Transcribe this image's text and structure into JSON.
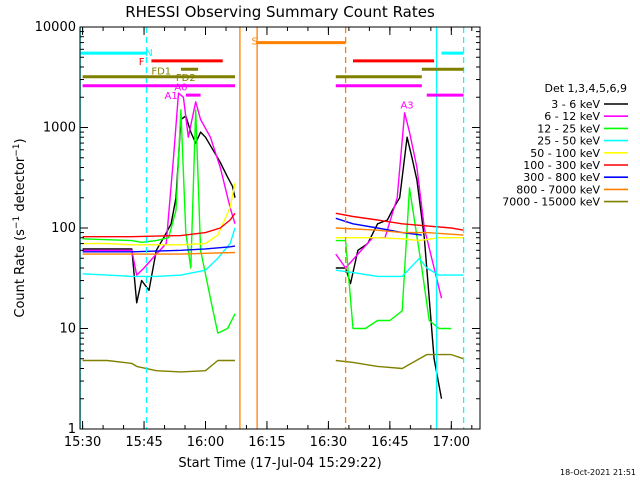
{
  "chart_data": {
    "type": "line",
    "title": "RHESSI Observing Summary Count Rates",
    "xlabel": "Start Time (17-Jul-04 15:29:22)",
    "ylabel": "Count Rate (s⁻¹ detector⁻¹)",
    "ylabel_main": "Count Rate (s",
    "ylabel_sup1": "−1",
    "ylabel_mid": " detector",
    "ylabel_sup2": "−1",
    "ylabel_end": ")",
    "yscale": "log",
    "ylim": [
      1,
      10000
    ],
    "xlim": [
      "15:29:22",
      "17:07"
    ],
    "x_ticks": [
      "15:30",
      "15:45",
      "16:00",
      "16:15",
      "16:30",
      "16:45",
      "17:00"
    ],
    "y_ticks": [
      "1",
      "10",
      "100",
      "1000",
      "10000"
    ],
    "legend_title": "Det 1,3,4,5,6,9",
    "legend_position": "right",
    "timestamp": "18-Oct-2021 21:51",
    "series": [
      {
        "name": "3 - 6 keV",
        "color": "#000000",
        "segments": [
          [
            [
              15.5,
              62
            ],
            [
              15.7,
              62
            ],
            [
              15.72,
              18
            ],
            [
              15.74,
              30
            ],
            [
              15.77,
              24
            ],
            [
              15.8,
              60
            ],
            [
              15.83,
              80
            ],
            [
              15.86,
              110
            ],
            [
              15.88,
              200
            ],
            [
              15.9,
              1200
            ],
            [
              15.92,
              1300
            ],
            [
              15.94,
              900
            ],
            [
              15.96,
              700
            ],
            [
              15.98,
              900
            ],
            [
              16.0,
              800
            ],
            [
              16.03,
              600
            ],
            [
              16.06,
              450
            ],
            [
              16.09,
              320
            ],
            [
              16.11,
              260
            ],
            [
              16.12,
              200
            ]
          ],
          [
            [
              16.53,
              40
            ],
            [
              16.57,
              40
            ],
            [
              16.59,
              28
            ],
            [
              16.62,
              60
            ],
            [
              16.66,
              70
            ],
            [
              16.7,
              110
            ],
            [
              16.74,
              120
            ],
            [
              16.76,
              150
            ],
            [
              16.79,
              200
            ],
            [
              16.82,
              800
            ],
            [
              16.84,
              500
            ],
            [
              16.86,
              300
            ],
            [
              16.89,
              80
            ],
            [
              16.91,
              20
            ],
            [
              16.93,
              5
            ],
            [
              16.96,
              2
            ]
          ]
        ]
      },
      {
        "name": "6 - 12 keV",
        "color": "#ff00ff",
        "segments": [
          [
            [
              15.5,
              60
            ],
            [
              15.7,
              60
            ],
            [
              15.72,
              34
            ],
            [
              15.75,
              40
            ],
            [
              15.8,
              55
            ],
            [
              15.84,
              70
            ],
            [
              15.87,
              500
            ],
            [
              15.89,
              2200
            ],
            [
              15.91,
              2000
            ],
            [
              15.93,
              800
            ],
            [
              15.96,
              1800
            ],
            [
              15.98,
              1200
            ],
            [
              16.02,
              800
            ],
            [
              16.06,
              400
            ],
            [
              16.1,
              160
            ],
            [
              16.12,
              110
            ]
          ],
          [
            [
              16.53,
              55
            ],
            [
              16.57,
              40
            ],
            [
              16.62,
              55
            ],
            [
              16.68,
              80
            ],
            [
              16.73,
              80
            ],
            [
              16.78,
              200
            ],
            [
              16.81,
              1400
            ],
            [
              16.83,
              900
            ],
            [
              16.86,
              400
            ],
            [
              16.89,
              100
            ],
            [
              16.93,
              40
            ],
            [
              16.96,
              20
            ]
          ]
        ]
      },
      {
        "name": "12 - 25 keV",
        "color": "#00ff00",
        "segments": [
          [
            [
              15.5,
              78
            ],
            [
              15.7,
              75
            ],
            [
              15.74,
              72
            ],
            [
              15.8,
              75
            ],
            [
              15.85,
              80
            ],
            [
              15.88,
              150
            ],
            [
              15.9,
              1500
            ],
            [
              15.92,
              90
            ],
            [
              15.94,
              40
            ],
            [
              15.96,
              1500
            ],
            [
              15.98,
              60
            ],
            [
              16.02,
              20
            ],
            [
              16.05,
              9
            ],
            [
              16.09,
              10
            ],
            [
              16.12,
              14
            ]
          ],
          [
            [
              16.53,
              75
            ],
            [
              16.57,
              75
            ],
            [
              16.6,
              10
            ],
            [
              16.65,
              10
            ],
            [
              16.7,
              12
            ],
            [
              16.75,
              12
            ],
            [
              16.8,
              15
            ],
            [
              16.83,
              250
            ],
            [
              16.85,
              120
            ],
            [
              16.88,
              40
            ],
            [
              16.91,
              12
            ],
            [
              16.95,
              10
            ],
            [
              17.0,
              10
            ]
          ]
        ]
      },
      {
        "name": "25 - 50 keV",
        "color": "#00ffff",
        "segments": [
          [
            [
              15.5,
              35
            ],
            [
              15.6,
              34
            ],
            [
              15.7,
              33
            ],
            [
              15.8,
              33
            ],
            [
              15.9,
              34
            ],
            [
              16.0,
              38
            ],
            [
              16.05,
              50
            ],
            [
              16.1,
              70
            ],
            [
              16.12,
              100
            ]
          ],
          [
            [
              16.53,
              38
            ],
            [
              16.6,
              36
            ],
            [
              16.7,
              33
            ],
            [
              16.8,
              33
            ],
            [
              16.87,
              50
            ],
            [
              16.9,
              40
            ],
            [
              16.95,
              34
            ],
            [
              17.05,
              34
            ]
          ]
        ]
      },
      {
        "name": "50 - 100 keV",
        "color": "#ffff00",
        "segments": [
          [
            [
              15.5,
              70
            ],
            [
              15.6,
              70
            ],
            [
              15.7,
              68
            ],
            [
              15.8,
              68
            ],
            [
              15.9,
              68
            ],
            [
              16.0,
              70
            ],
            [
              16.05,
              85
            ],
            [
              16.1,
              160
            ],
            [
              16.12,
              280
            ]
          ],
          [
            [
              16.53,
              80
            ],
            [
              16.6,
              80
            ],
            [
              16.7,
              80
            ],
            [
              16.8,
              78
            ],
            [
              16.87,
              75
            ],
            [
              16.95,
              80
            ],
            [
              17.05,
              80
            ]
          ]
        ]
      },
      {
        "name": "100 - 300 keV",
        "color": "#ff0000",
        "segments": [
          [
            [
              15.5,
              82
            ],
            [
              15.6,
              82
            ],
            [
              15.7,
              82
            ],
            [
              15.8,
              83
            ],
            [
              15.9,
              84
            ],
            [
              16.0,
              90
            ],
            [
              16.06,
              100
            ],
            [
              16.1,
              120
            ],
            [
              16.12,
              140
            ]
          ],
          [
            [
              16.53,
              140
            ],
            [
              16.6,
              130
            ],
            [
              16.7,
              120
            ],
            [
              16.8,
              110
            ],
            [
              16.9,
              105
            ],
            [
              17.0,
              100
            ],
            [
              17.05,
              95
            ]
          ]
        ]
      },
      {
        "name": "300 - 800 keV",
        "color": "#0000ff",
        "segments": [
          [
            [
              15.5,
              58
            ],
            [
              15.7,
              58
            ],
            [
              15.9,
              60
            ],
            [
              16.0,
              62
            ],
            [
              16.1,
              65
            ],
            [
              16.12,
              66
            ]
          ],
          [
            [
              16.53,
              125
            ],
            [
              16.6,
              110
            ],
            [
              16.7,
              100
            ],
            [
              16.8,
              90
            ],
            [
              16.88,
              85
            ]
          ]
        ]
      },
      {
        "name": "800 - 7000 keV",
        "color": "#ff8000",
        "segments": [
          [
            [
              15.5,
              55
            ],
            [
              15.7,
              55
            ],
            [
              15.9,
              55
            ],
            [
              16.0,
              56
            ],
            [
              16.12,
              57
            ]
          ],
          [
            [
              16.53,
              100
            ],
            [
              16.7,
              95
            ],
            [
              16.8,
              90
            ],
            [
              16.9,
              90
            ],
            [
              17.05,
              85
            ]
          ]
        ]
      },
      {
        "name": "7000 - 15000 keV",
        "color": "#808000",
        "segments": [
          [
            [
              15.5,
              4.8
            ],
            [
              15.6,
              4.8
            ],
            [
              15.7,
              4.5
            ],
            [
              15.72,
              4.2
            ],
            [
              15.8,
              3.8
            ],
            [
              15.9,
              3.7
            ],
            [
              16.0,
              3.8
            ],
            [
              16.05,
              4.8
            ],
            [
              16.12,
              4.8
            ]
          ],
          [
            [
              16.53,
              4.8
            ],
            [
              16.6,
              4.6
            ],
            [
              16.7,
              4.2
            ],
            [
              16.8,
              4.0
            ],
            [
              16.9,
              5.5
            ],
            [
              17.0,
              5.5
            ],
            [
              17.05,
              5.0
            ]
          ]
        ]
      }
    ],
    "flag_bars": [
      {
        "label": "N",
        "color": "#00ffff",
        "y": 5500,
        "segments": [
          [
            15.49,
            15.76
          ],
          [
            16.96,
            17.05
          ]
        ]
      },
      {
        "label": "S",
        "color": "#ff8000",
        "y": 7000,
        "segments": [
          [
            16.21,
            16.57
          ]
        ]
      },
      {
        "label": "F",
        "color": "#ff0000",
        "y": 4600,
        "segments": [
          [
            15.78,
            16.07
          ],
          [
            16.6,
            16.93
          ]
        ]
      },
      {
        "label": "FD1",
        "color": "#808000",
        "y": 3800,
        "segments": [
          [
            15.9,
            15.97
          ],
          [
            16.88,
            17.05
          ]
        ]
      },
      {
        "label": "FD2",
        "color": "#808000",
        "y": 3200,
        "segments": [
          [
            15.5,
            16.12
          ],
          [
            16.53,
            16.88
          ]
        ]
      },
      {
        "label": "A0",
        "color": "#ff00ff",
        "y": 2600,
        "segments": [
          [
            15.5,
            16.12
          ],
          [
            16.53,
            16.88
          ]
        ]
      },
      {
        "label": "A1",
        "color": "#ff00ff",
        "y": 2100,
        "segments": [
          [
            15.92,
            15.98
          ]
        ]
      },
      {
        "label": "A3",
        "color": "#ff00ff",
        "y": 2100,
        "segments": [
          [
            16.9,
            17.05
          ]
        ]
      }
    ],
    "flag_labels": [
      {
        "text": "N",
        "color": "#00ffff",
        "x": 15.77,
        "y": 5500
      },
      {
        "text": "S",
        "color": "#ff8000",
        "x": 16.2,
        "y": 7200
      },
      {
        "text": "F",
        "color": "#ff0000",
        "x": 15.74,
        "y": 4500
      },
      {
        "text": "FD1",
        "color": "#808000",
        "x": 15.82,
        "y": 3600
      },
      {
        "text": "FD2",
        "color": "#808000",
        "x": 15.92,
        "y": 3100
      },
      {
        "text": "A0",
        "color": "#ff00ff",
        "x": 15.9,
        "y": 2500
      },
      {
        "text": "A1",
        "color": "#ff00ff",
        "x": 15.86,
        "y": 2050
      },
      {
        "text": "A3",
        "color": "#ff00ff",
        "x": 16.82,
        "y": 1650
      }
    ],
    "vlines": [
      {
        "x": 15.49,
        "color": "#00ffff",
        "style": "solid"
      },
      {
        "x": 15.76,
        "color": "#00ffff",
        "style": "dashed"
      },
      {
        "x": 16.14,
        "color": "#ff8000",
        "style": "solid"
      },
      {
        "x": 16.21,
        "color": "#ff8000",
        "style": "solid"
      },
      {
        "x": 16.57,
        "color": "#ff8000",
        "style": "dashed"
      },
      {
        "x": 16.94,
        "color": "#00ffff",
        "style": "solid"
      },
      {
        "x": 17.05,
        "color": "#00ffff",
        "style": "dashed"
      }
    ]
  }
}
